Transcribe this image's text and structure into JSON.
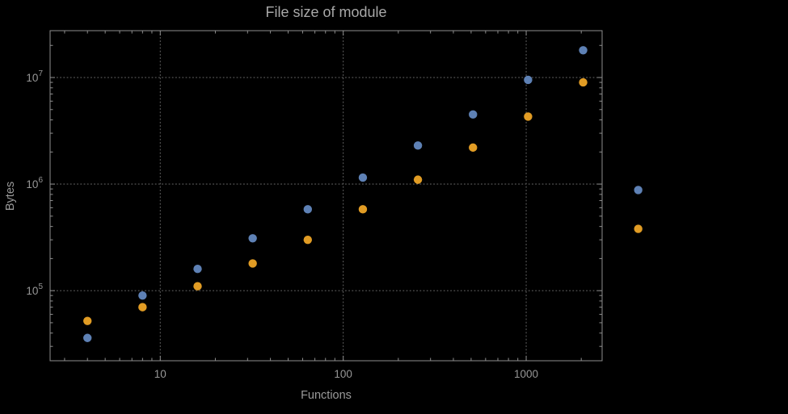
{
  "chart_data": {
    "type": "scatter",
    "title": "File size of module",
    "xlabel": "Functions",
    "ylabel": "Bytes",
    "x_scale": "log",
    "y_scale": "log",
    "grid": "dotted-at-decades",
    "legend": "none",
    "x": [
      4,
      8,
      16,
      32,
      64,
      128,
      256,
      512,
      1024,
      2048,
      4096
    ],
    "series": [
      {
        "name": "blue",
        "color": "#5E81B5",
        "values": [
          36000,
          90000,
          160000,
          310000,
          580000,
          1150000,
          2300000,
          4500000,
          9500000,
          18000000,
          880000
        ]
      },
      {
        "name": "orange",
        "color": "#E19C24",
        "values": [
          52000,
          70000,
          110000,
          180000,
          300000,
          580000,
          1100000,
          2200000,
          4300000,
          9000000,
          380000
        ]
      }
    ],
    "x_ticks": [
      {
        "value": 10,
        "label": "10"
      },
      {
        "value": 100,
        "label": "100"
      },
      {
        "value": 1000,
        "label": "1000"
      }
    ],
    "y_ticks": [
      {
        "value": 100000,
        "base": "10",
        "exp": "5"
      },
      {
        "value": 1000000,
        "base": "10",
        "exp": "6"
      },
      {
        "value": 10000000,
        "base": "10",
        "exp": "7"
      }
    ],
    "x_range": [
      2.5,
      2600
    ],
    "y_range": [
      22000,
      27500000
    ],
    "frame_color": "#8e8e8e",
    "grid_color": "#5e5e5e",
    "text_color": "#979797"
  }
}
